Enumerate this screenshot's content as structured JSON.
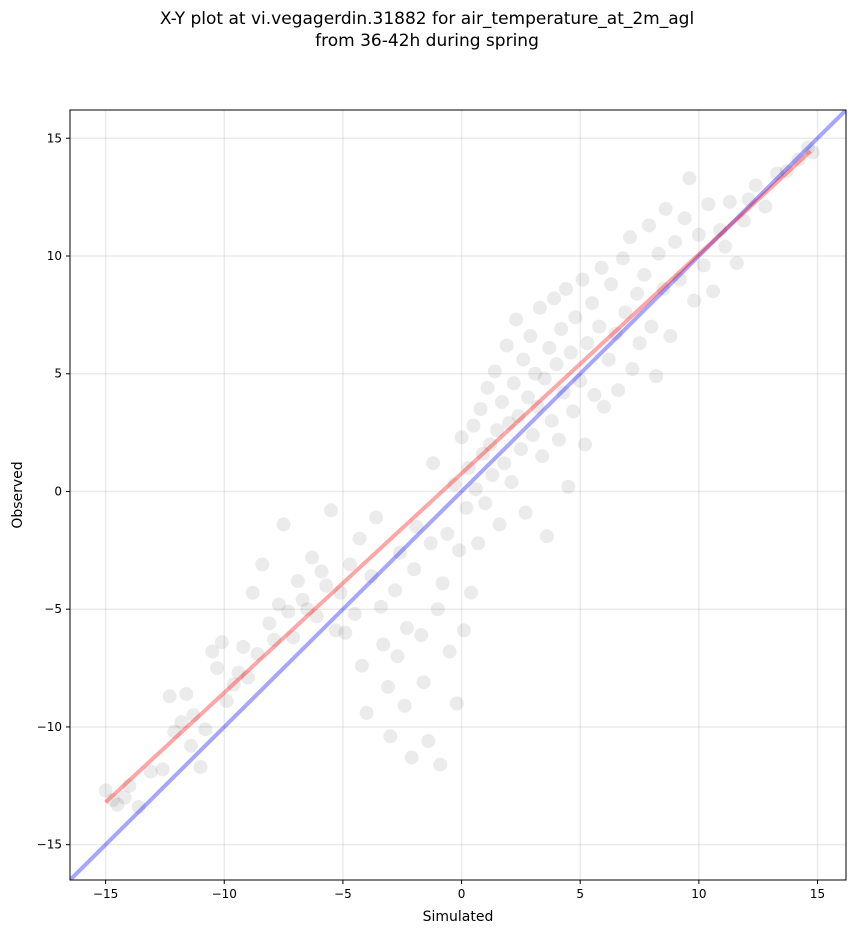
{
  "chart_data": {
    "type": "scatter",
    "title": "X-Y plot at vi.vegagerdin.31882 for air_temperature_at_2m_agl",
    "subtitle": "from 36-42h during spring",
    "xlabel": "Simulated",
    "ylabel": "Observed",
    "xlim": [
      -16.5,
      16.2
    ],
    "ylim": [
      -16.5,
      16.2
    ],
    "xticks": [
      -15,
      -10,
      -5,
      0,
      5,
      10,
      15
    ],
    "yticks": [
      -15,
      -10,
      -5,
      0,
      5,
      10,
      15
    ],
    "xtick_labels": [
      "−15",
      "−10",
      "−5",
      "0",
      "5",
      "10",
      "15"
    ],
    "ytick_labels": [
      "−15",
      "−10",
      "−5",
      "0",
      "5",
      "10",
      "15"
    ],
    "grid": true,
    "point_color": "#000000",
    "point_alpha": 0.08,
    "identity_line": {
      "color": "#0000ff",
      "points": [
        [
          -16.5,
          -16.5
        ],
        [
          16.2,
          16.2
        ]
      ]
    },
    "regression_line": {
      "color": "#ff0000",
      "points": [
        [
          -15.0,
          -13.2
        ],
        [
          14.7,
          14.45
        ]
      ]
    },
    "series": [
      {
        "values": [
          [
            -15.0,
            -12.7
          ],
          [
            -14.7,
            -13.1
          ],
          [
            -14.5,
            -13.3
          ],
          [
            -14.2,
            -13.0
          ],
          [
            -14.0,
            -12.5
          ],
          [
            -13.6,
            -13.4
          ],
          [
            -13.1,
            -11.9
          ],
          [
            -12.6,
            -11.8
          ],
          [
            -12.3,
            -8.7
          ],
          [
            -12.1,
            -10.2
          ],
          [
            -11.8,
            -9.8
          ],
          [
            -11.6,
            -8.6
          ],
          [
            -11.4,
            -10.8
          ],
          [
            -11.3,
            -9.5
          ],
          [
            -11.0,
            -11.7
          ],
          [
            -10.8,
            -10.1
          ],
          [
            -10.5,
            -6.8
          ],
          [
            -10.3,
            -7.5
          ],
          [
            -10.1,
            -6.4
          ],
          [
            -9.9,
            -8.9
          ],
          [
            -9.6,
            -8.2
          ],
          [
            -9.4,
            -7.7
          ],
          [
            -9.2,
            -6.6
          ],
          [
            -9.0,
            -7.9
          ],
          [
            -8.8,
            -4.3
          ],
          [
            -8.6,
            -6.9
          ],
          [
            -8.4,
            -3.1
          ],
          [
            -8.1,
            -5.6
          ],
          [
            -7.9,
            -6.3
          ],
          [
            -7.7,
            -4.8
          ],
          [
            -7.5,
            -1.4
          ],
          [
            -7.3,
            -5.1
          ],
          [
            -7.1,
            -6.2
          ],
          [
            -6.9,
            -3.8
          ],
          [
            -6.7,
            -4.6
          ],
          [
            -6.5,
            -5.0
          ],
          [
            -6.3,
            -2.8
          ],
          [
            -6.1,
            -5.3
          ],
          [
            -5.9,
            -3.4
          ],
          [
            -5.7,
            -4.0
          ],
          [
            -5.5,
            -0.8
          ],
          [
            -5.3,
            -5.9
          ],
          [
            -5.1,
            -4.3
          ],
          [
            -4.9,
            -6.0
          ],
          [
            -4.7,
            -3.1
          ],
          [
            -4.5,
            -5.2
          ],
          [
            -4.3,
            -2.0
          ],
          [
            -4.2,
            -7.4
          ],
          [
            -4.0,
            -9.4
          ],
          [
            -3.8,
            -3.6
          ],
          [
            -3.6,
            -1.1
          ],
          [
            -3.4,
            -4.9
          ],
          [
            -3.3,
            -6.5
          ],
          [
            -3.1,
            -8.3
          ],
          [
            -3.0,
            -10.4
          ],
          [
            -2.8,
            -4.2
          ],
          [
            -2.7,
            -7.0
          ],
          [
            -2.6,
            -2.6
          ],
          [
            -2.4,
            -9.1
          ],
          [
            -2.3,
            -5.8
          ],
          [
            -2.1,
            -11.3
          ],
          [
            -2.0,
            -3.3
          ],
          [
            -1.9,
            -1.5
          ],
          [
            -1.7,
            -6.1
          ],
          [
            -1.6,
            -8.1
          ],
          [
            -1.4,
            -10.6
          ],
          [
            -1.3,
            -2.2
          ],
          [
            -1.2,
            1.2
          ],
          [
            -1.0,
            -5.0
          ],
          [
            -0.9,
            -11.6
          ],
          [
            -0.8,
            -3.9
          ],
          [
            -0.6,
            -1.8
          ],
          [
            -0.5,
            -6.8
          ],
          [
            -0.3,
            0.3
          ],
          [
            -0.2,
            -9.0
          ],
          [
            -0.1,
            -2.5
          ],
          [
            0.0,
            2.3
          ],
          [
            0.1,
            -5.9
          ],
          [
            0.2,
            -0.7
          ],
          [
            0.3,
            1.0
          ],
          [
            0.4,
            -4.3
          ],
          [
            0.5,
            2.8
          ],
          [
            0.6,
            0.1
          ],
          [
            0.7,
            -2.2
          ],
          [
            0.8,
            3.5
          ],
          [
            0.9,
            1.6
          ],
          [
            1.0,
            -0.5
          ],
          [
            1.1,
            4.4
          ],
          [
            1.2,
            2.0
          ],
          [
            1.3,
            0.7
          ],
          [
            1.4,
            5.1
          ],
          [
            1.5,
            2.6
          ],
          [
            1.6,
            -1.4
          ],
          [
            1.7,
            3.8
          ],
          [
            1.8,
            1.2
          ],
          [
            1.9,
            6.2
          ],
          [
            2.0,
            2.9
          ],
          [
            2.1,
            0.4
          ],
          [
            2.2,
            4.6
          ],
          [
            2.3,
            7.3
          ],
          [
            2.4,
            3.2
          ],
          [
            2.5,
            1.8
          ],
          [
            2.6,
            5.6
          ],
          [
            2.7,
            -0.9
          ],
          [
            2.8,
            4.0
          ],
          [
            2.9,
            6.6
          ],
          [
            3.0,
            2.4
          ],
          [
            3.1,
            5.0
          ],
          [
            3.2,
            3.6
          ],
          [
            3.3,
            7.8
          ],
          [
            3.4,
            1.5
          ],
          [
            3.5,
            4.8
          ],
          [
            3.6,
            -1.9
          ],
          [
            3.7,
            6.1
          ],
          [
            3.8,
            3.0
          ],
          [
            3.9,
            8.2
          ],
          [
            4.0,
            5.4
          ],
          [
            4.1,
            2.2
          ],
          [
            4.2,
            6.9
          ],
          [
            4.3,
            4.2
          ],
          [
            4.4,
            8.6
          ],
          [
            4.5,
            0.2
          ],
          [
            4.6,
            5.9
          ],
          [
            4.7,
            3.4
          ],
          [
            4.8,
            7.4
          ],
          [
            5.0,
            4.7
          ],
          [
            5.1,
            9.0
          ],
          [
            5.2,
            2.0
          ],
          [
            5.3,
            6.3
          ],
          [
            5.5,
            8.0
          ],
          [
            5.6,
            4.1
          ],
          [
            5.8,
            7.0
          ],
          [
            5.9,
            9.5
          ],
          [
            6.0,
            3.6
          ],
          [
            6.2,
            5.6
          ],
          [
            6.3,
            8.8
          ],
          [
            6.5,
            6.7
          ],
          [
            6.6,
            4.3
          ],
          [
            6.8,
            9.9
          ],
          [
            6.9,
            7.6
          ],
          [
            7.1,
            10.8
          ],
          [
            7.2,
            5.2
          ],
          [
            7.4,
            8.4
          ],
          [
            7.5,
            6.3
          ],
          [
            7.7,
            9.2
          ],
          [
            7.9,
            11.3
          ],
          [
            8.0,
            7.0
          ],
          [
            8.2,
            4.9
          ],
          [
            8.3,
            10.1
          ],
          [
            8.5,
            8.6
          ],
          [
            8.6,
            12.0
          ],
          [
            8.8,
            6.6
          ],
          [
            9.0,
            10.6
          ],
          [
            9.2,
            9.0
          ],
          [
            9.4,
            11.6
          ],
          [
            9.6,
            13.3
          ],
          [
            9.8,
            8.1
          ],
          [
            10.0,
            10.9
          ],
          [
            10.2,
            9.6
          ],
          [
            10.4,
            12.2
          ],
          [
            10.6,
            8.5
          ],
          [
            10.9,
            11.1
          ],
          [
            11.1,
            10.4
          ],
          [
            11.3,
            12.3
          ],
          [
            11.6,
            9.7
          ],
          [
            11.9,
            11.5
          ],
          [
            12.1,
            12.4
          ],
          [
            12.4,
            13.0
          ],
          [
            12.8,
            12.1
          ],
          [
            13.3,
            13.5
          ],
          [
            13.7,
            13.6
          ],
          [
            14.2,
            14.1
          ],
          [
            14.6,
            14.6
          ],
          [
            14.8,
            14.4
          ]
        ]
      }
    ]
  }
}
